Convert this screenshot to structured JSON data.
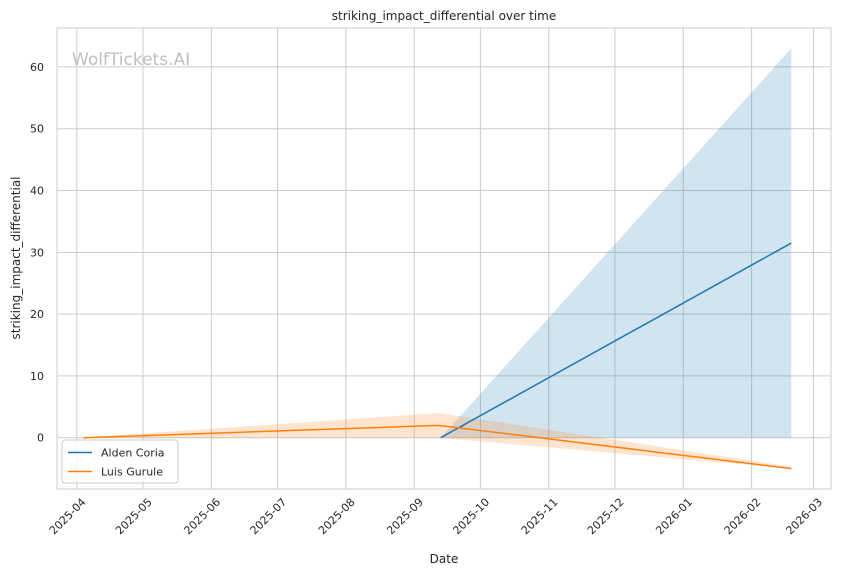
{
  "chart_data": {
    "type": "line",
    "title": "striking_impact_differential over time",
    "xlabel": "Date",
    "ylabel": "striking_impact_differential",
    "watermark": "WolfTickets.AI",
    "x_ticks": [
      "2025-04",
      "2025-05",
      "2025-06",
      "2025-07",
      "2025-08",
      "2025-09",
      "2025-10",
      "2025-11",
      "2025-12",
      "2026-01",
      "2026-02",
      "2026-03"
    ],
    "y_ticks": [
      "0",
      "10",
      "20",
      "30",
      "40",
      "50",
      "60"
    ],
    "xlim": [
      "2025-03-23",
      "2026-03-09"
    ],
    "ylim": [
      -8.3,
      66.3
    ],
    "grid": true,
    "legend_position": "lower-left",
    "series": [
      {
        "name": "Alden Coria",
        "color": "#1f77b4",
        "x": [
          "2025-09-13",
          "2026-02-19"
        ],
        "y": [
          0,
          31.5
        ],
        "band_low": [
          0,
          0
        ],
        "band_high": [
          0,
          63
        ]
      },
      {
        "name": "Luis Gurule",
        "color": "#ff7f0e",
        "x": [
          "2025-04-04",
          "2025-09-12",
          "2026-02-19"
        ],
        "y": [
          0,
          2,
          -5
        ],
        "band_low": [
          0,
          0,
          -5
        ],
        "band_high": [
          0,
          4,
          -4.7
        ]
      }
    ]
  }
}
